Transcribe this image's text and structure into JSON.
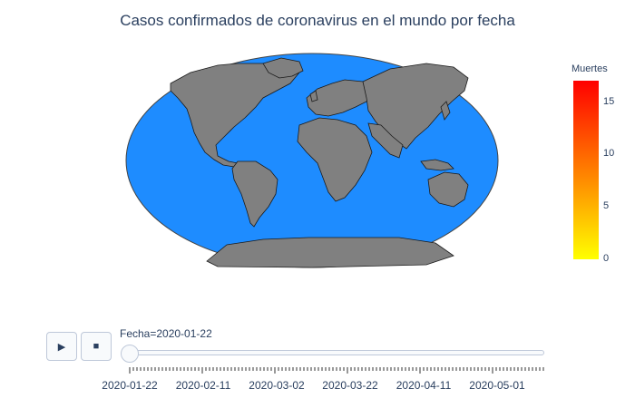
{
  "title": "Casos confirmados de coronavirus en el mundo por fecha",
  "colors": {
    "ocean": "#1e8cff",
    "land": "#808080",
    "border": "#1a1a1a",
    "colorscale": [
      "#ffff00",
      "#ff8a00",
      "#ff0000"
    ]
  },
  "colorbar": {
    "title": "Muertes",
    "ticks": [
      "0",
      "5",
      "10",
      "15"
    ],
    "range": [
      0,
      17
    ]
  },
  "slider": {
    "current_label": "Fecha=2020-01-22",
    "current_value": "2020-01-22",
    "start": "2020-01-22",
    "end": "2020-05-15",
    "tick_labels": [
      "2020-01-22",
      "2020-02-11",
      "2020-03-02",
      "2020-03-22",
      "2020-04-11",
      "2020-05-01"
    ]
  },
  "controls": {
    "play_icon": "play-icon",
    "stop_icon": "stop-icon"
  }
}
